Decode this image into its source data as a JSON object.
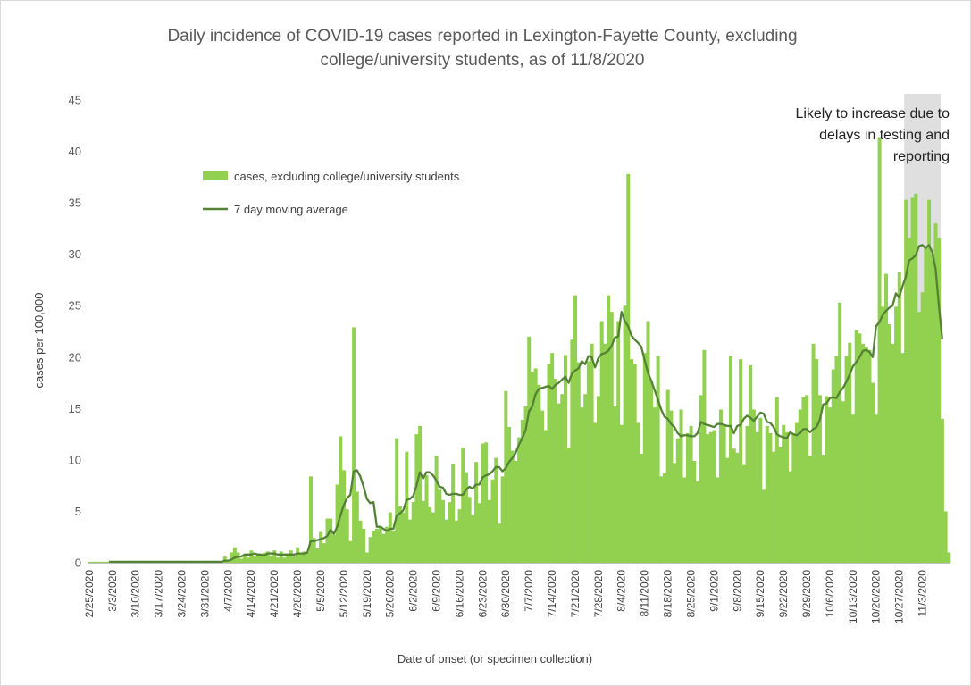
{
  "chart_data": {
    "type": "bar",
    "title_lines": [
      "Daily incidence of COVID-19 cases reported in Lexington-Fayette County, excluding",
      "college/university students, as of 11/8/2020"
    ],
    "xlabel": "Date of onset (or specimen collection)",
    "ylabel": "cases per 100,000",
    "ylim": [
      0,
      45
    ],
    "yticks": [
      0,
      5,
      10,
      15,
      20,
      25,
      30,
      35,
      40,
      45
    ],
    "x_tick_labels": [
      "2/25/2020",
      "3/3/2020",
      "3/10/2020",
      "3/17/2020",
      "3/24/2020",
      "3/31/2020",
      "4/7/2020",
      "4/14/2020",
      "4/21/2020",
      "4/28/2020",
      "5/5/2020",
      "5/12/2020",
      "5/19/2020",
      "5/26/2020",
      "6/2/2020",
      "6/9/2020",
      "6/16/2020",
      "6/23/2020",
      "6/30/2020",
      "7/7/2020",
      "7/14/2020",
      "7/21/2020",
      "7/28/2020",
      "8/4/2020",
      "8/11/2020",
      "8/18/2020",
      "8/25/2020",
      "9/1/2020",
      "9/8/2020",
      "9/15/2020",
      "9/22/2020",
      "9/29/2020",
      "10/6/2020",
      "10/13/2020",
      "10/20/2020",
      "10/27/2020",
      "11/3/2020"
    ],
    "start_date": "2/25/2020",
    "end_date": "11/8/2020",
    "grid": false,
    "legend_placement": "upper-left",
    "colors": {
      "bars": "#92d050",
      "line": "#548235",
      "shade": "#d9d9d9"
    },
    "series": [
      {
        "name": "cases, excluding college/university students",
        "type": "bar",
        "values": [
          0.1,
          0.1,
          0.1,
          0.1,
          0.1,
          0.1,
          0.1,
          0.1,
          0.1,
          0.1,
          0.1,
          0.1,
          0.1,
          0.1,
          0.1,
          0.1,
          0.1,
          0.1,
          0.1,
          0.1,
          0.1,
          0.1,
          0.1,
          0.1,
          0.1,
          0.1,
          0.1,
          0.1,
          0.1,
          0.1,
          0.1,
          0.1,
          0.1,
          0.1,
          0.1,
          0.1,
          0.1,
          0.1,
          0.1,
          0.1,
          0.1,
          0.6,
          0.3,
          1.0,
          1.5,
          1.0,
          0.4,
          0.8,
          0.5,
          1.2,
          0.6,
          0.9,
          0.7,
          1.0,
          1.1,
          0.7,
          1.2,
          0.5,
          1.1,
          0.5,
          0.8,
          1.2,
          0.6,
          1.5,
          0.9,
          1.1,
          1.0,
          8.4,
          2.4,
          1.4,
          3.0,
          1.9,
          4.3,
          4.3,
          2.7,
          7.6,
          12.3,
          9.0,
          5.2,
          2.1,
          22.9,
          6.9,
          4.1,
          3.3,
          1.0,
          2.5,
          3.1,
          3.3,
          3.6,
          2.8,
          3.5,
          4.9,
          3.1,
          12.1,
          5.5,
          4.9,
          10.8,
          4.2,
          5.9,
          12.5,
          13.3,
          6.0,
          8.5,
          5.4,
          4.9,
          10.4,
          7.1,
          6.1,
          4.2,
          5.9,
          9.6,
          4.1,
          5.2,
          11.2,
          8.8,
          6.4,
          4.7,
          9.8,
          5.8,
          11.6,
          11.7,
          6.1,
          8.1,
          10.2,
          3.8,
          8.4,
          16.7,
          13.2,
          10.9,
          9.9,
          12.2,
          13.9,
          15.2,
          22.0,
          18.6,
          18.9,
          17.3,
          14.8,
          12.9,
          19.3,
          20.4,
          17.9,
          15.5,
          16.4,
          20.2,
          11.2,
          21.7,
          26.0,
          19.5,
          15.1,
          16.4,
          19.6,
          21.3,
          13.6,
          16.2,
          23.5,
          21.3,
          26.0,
          24.4,
          15.2,
          23.5,
          13.4,
          25.0,
          37.8,
          19.8,
          19.3,
          13.6,
          10.6,
          20.4,
          23.5,
          17.7,
          15.1,
          20.1,
          8.4,
          8.7,
          16.8,
          14.8,
          9.7,
          12.1,
          14.9,
          8.3,
          12.6,
          13.3,
          9.9,
          7.9,
          16.3,
          20.7,
          12.5,
          12.7,
          12.9,
          8.3,
          14.9,
          13.3,
          10.2,
          20.1,
          11.1,
          10.7,
          19.8,
          9.5,
          13.3,
          19.2,
          14.9,
          12.7,
          14.1,
          7.1,
          13.3,
          12.6,
          10.8,
          16.1,
          11.3,
          13.4,
          12.7,
          8.9,
          12.5,
          13.6,
          14.9,
          16.1,
          16.3,
          10.4,
          21.3,
          19.8,
          16.3,
          10.5,
          16.2,
          15.1,
          18.8,
          20.1,
          25.3,
          15.7,
          20.1,
          21.4,
          14.4,
          22.6,
          22.3,
          21.3,
          21.0,
          20.7,
          17.5,
          14.4,
          41.4,
          24.9,
          28.1,
          23.2,
          21.3,
          24.9,
          28.3,
          20.4,
          35.3,
          31.6,
          35.5,
          35.9,
          24.4,
          26.3,
          30.8,
          35.3,
          30.0,
          33.0,
          31.6,
          14.0,
          5.0,
          1.0
        ]
      },
      {
        "name": "7 day moving average",
        "type": "line",
        "values": [
          null,
          null,
          null,
          null,
          null,
          null,
          0.1,
          0.1,
          0.1,
          0.1,
          0.1,
          0.1,
          0.1,
          0.1,
          0.1,
          0.1,
          0.1,
          0.1,
          0.1,
          0.1,
          0.1,
          0.1,
          0.1,
          0.1,
          0.1,
          0.1,
          0.1,
          0.1,
          0.1,
          0.1,
          0.1,
          0.1,
          0.1,
          0.1,
          0.1,
          0.1,
          0.1,
          0.1,
          0.1,
          0.1,
          0.1,
          0.2,
          0.2,
          0.3,
          0.5,
          0.6,
          0.6,
          0.8,
          0.8,
          0.8,
          0.9,
          0.8,
          0.8,
          0.7,
          0.9,
          0.9,
          0.9,
          0.8,
          0.8,
          0.8,
          0.8,
          0.8,
          0.8,
          0.9,
          0.9,
          0.9,
          1.0,
          2.1,
          2.1,
          2.2,
          2.3,
          2.4,
          2.6,
          3.2,
          2.8,
          3.5,
          4.6,
          5.6,
          6.3,
          6.6,
          8.9,
          9.0,
          8.4,
          7.4,
          6.2,
          5.8,
          5.9,
          3.5,
          3.5,
          3.3,
          3.1,
          3.3,
          3.3,
          4.6,
          4.8,
          5.1,
          6.1,
          6.2,
          6.5,
          7.5,
          8.8,
          8.2,
          8.8,
          8.8,
          8.5,
          8.0,
          7.4,
          7.3,
          6.7,
          6.6,
          6.7,
          6.7,
          6.6,
          6.6,
          7.1,
          7.4,
          7.2,
          7.6,
          7.6,
          8.3,
          8.5,
          8.6,
          8.9,
          9.3,
          9.3,
          8.9,
          9.2,
          9.8,
          10.2,
          10.7,
          11.5,
          12.1,
          12.9,
          14.7,
          15.2,
          16.4,
          16.9,
          17.0,
          17.1,
          17.2,
          16.9,
          17.3,
          17.5,
          17.8,
          18.1,
          17.5,
          18.4,
          18.7,
          18.9,
          19.6,
          19.3,
          20.1,
          20.0,
          19.0,
          19.9,
          20.3,
          20.4,
          20.6,
          21.1,
          21.9,
          22.0,
          24.4,
          23.5,
          23.0,
          22.1,
          21.7,
          21.4,
          21.0,
          19.7,
          18.5,
          17.7,
          16.8,
          15.9,
          14.9,
          14.2,
          14.0,
          13.5,
          13.2,
          12.6,
          12.3,
          12.4,
          12.4,
          12.3,
          12.3,
          12.6,
          13.7,
          13.5,
          13.4,
          13.3,
          13.2,
          13.5,
          13.5,
          13.4,
          13.3,
          13.3,
          12.6,
          13.3,
          13.4,
          14.0,
          14.3,
          14.1,
          13.8,
          14.2,
          14.6,
          14.5,
          13.7,
          13.6,
          13.2,
          12.5,
          12.3,
          12.2,
          12.1,
          12.7,
          12.5,
          12.4,
          12.6,
          13.0,
          13.0,
          12.7,
          13.0,
          13.2,
          13.9,
          15.4,
          15.5,
          16.0,
          16.1,
          16.0,
          16.6,
          17.0,
          17.6,
          18.3,
          19.1,
          19.5,
          20.0,
          20.6,
          20.7,
          20.5,
          20.0,
          23.0,
          23.4,
          24.1,
          24.5,
          24.8,
          25.0,
          26.2,
          25.8,
          26.9,
          27.8,
          29.4,
          29.6,
          29.9,
          30.8,
          30.9,
          30.6,
          30.9,
          30.2,
          28.6,
          25.0,
          21.8
        ]
      }
    ],
    "shaded_region": {
      "from": "10/29/2020",
      "to": "11/8/2020"
    },
    "annotation": [
      "Likely to increase due to",
      "delays in testing and",
      "reporting"
    ]
  }
}
